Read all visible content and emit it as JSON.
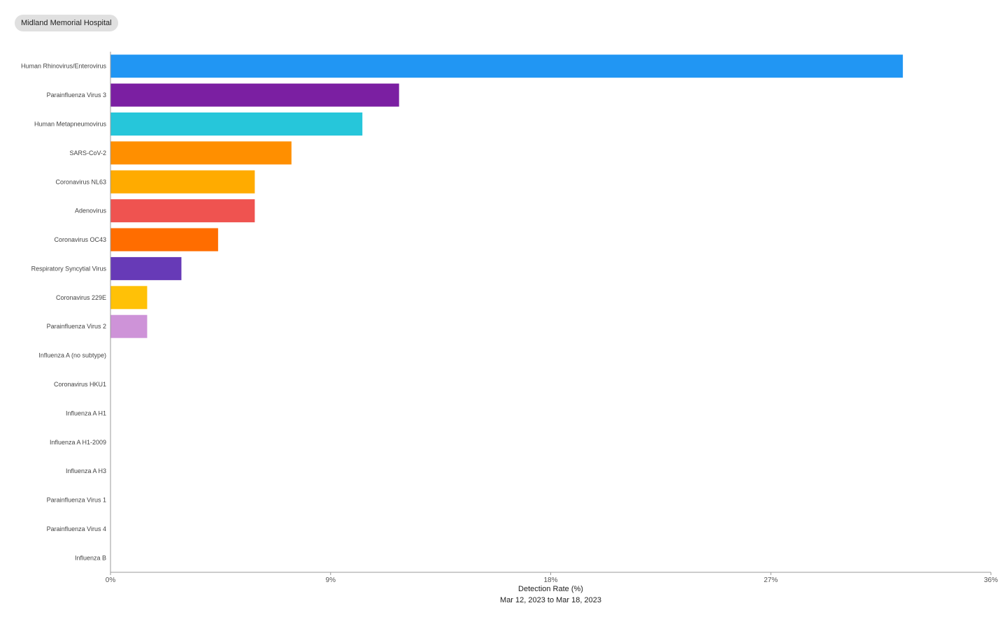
{
  "header": {
    "hospital_label": "Midland Memorial Hospital"
  },
  "chart_data": {
    "type": "bar",
    "orientation": "horizontal",
    "categories": [
      "Human Rhinovirus/Enterovirus",
      "Parainfluenza Virus 3",
      "Human Metapneumovirus",
      "SARS-CoV-2",
      "Coronavirus NL63",
      "Adenovirus",
      "Coronavirus OC43",
      "Respiratory Syncytial Virus",
      "Coronavirus 229E",
      "Parainfluenza Virus 2",
      "Influenza A (no subtype)",
      "Coronavirus HKU1",
      "Influenza A H1",
      "Influenza A H1-2009",
      "Influenza A H3",
      "Parainfluenza Virus 1",
      "Parainfluenza Virus 4",
      "Influenza B"
    ],
    "values": [
      32.4,
      11.8,
      10.3,
      7.4,
      5.9,
      5.9,
      4.4,
      2.9,
      1.5,
      1.5,
      0,
      0,
      0,
      0,
      0,
      0,
      0,
      0
    ],
    "colors": [
      "#2196f3",
      "#7b1fa2",
      "#26c6da",
      "#ff8f00",
      "#ffab00",
      "#ef5350",
      "#ff6d00",
      "#673ab7",
      "#ffc107",
      "#ce93d8",
      "#9e9e9e",
      "#9e9e9e",
      "#9e9e9e",
      "#9e9e9e",
      "#9e9e9e",
      "#9e9e9e",
      "#9e9e9e",
      "#9e9e9e"
    ],
    "xlabel": "Detection Rate (%)",
    "subtitle": "Mar 12, 2023 to Mar 18, 2023",
    "xlim": [
      0,
      36
    ],
    "xticks": [
      0,
      9,
      18,
      27,
      36
    ],
    "xtick_labels": [
      "0%",
      "9%",
      "18%",
      "27%",
      "36%"
    ],
    "grid": false,
    "axis_color": "#999999"
  }
}
